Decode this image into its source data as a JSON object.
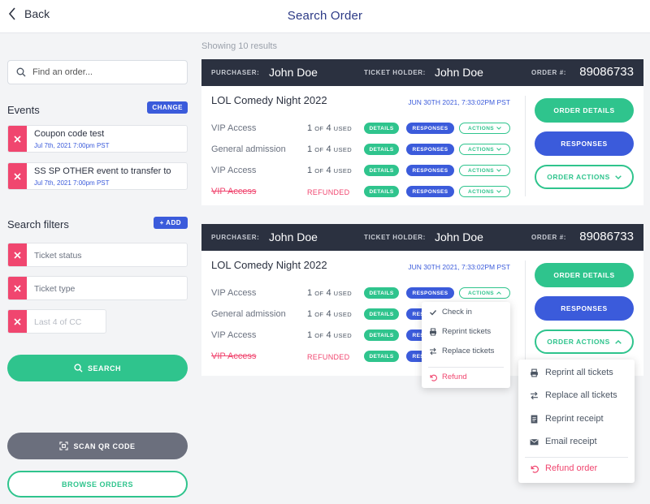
{
  "header": {
    "back_label": "Back",
    "title": "Search Order"
  },
  "sidebar": {
    "search_placeholder": "Find an order...",
    "events_title": "Events",
    "change_label": "CHANGE",
    "events": [
      {
        "name": "Coupon code test",
        "date": "Jul 7th, 2021 7:00pm PST"
      },
      {
        "name": "SS SP OTHER event to transfer to",
        "date": "Jul 7th, 2021 7:00pm PST"
      }
    ],
    "filters_title": "Search filters",
    "add_label": "+ ADD",
    "filters": [
      "Ticket status",
      "Ticket type",
      "Last 4 of CC"
    ],
    "search_button": "SEARCH",
    "scan_button": "SCAN QR CODE",
    "browse_button": "BROWSE ORDERS"
  },
  "main": {
    "results_text": "Showing 10 results",
    "labels": {
      "purchaser": "PURCHASER:",
      "ticket_holder": "TICKET HOLDER:",
      "order_number": "ORDER #:",
      "details": "DETAILS",
      "responses": "RESPONSES",
      "actions": "ACTIONS",
      "order_details": "ORDER DETAILS",
      "responses_btn": "RESPONSES",
      "order_actions": "ORDER ACTIONS"
    },
    "orders": [
      {
        "purchaser": "John Doe",
        "ticket_holder": "John Doe",
        "order_number": "89086733",
        "event_title": "LOL Comedy Night 2022",
        "event_when": "JUN 30TH 2021, 7:33:02PM PST",
        "tickets": [
          {
            "name": "VIP Access",
            "count": "1",
            "of": "OF",
            "total": "4",
            "used": "USED"
          },
          {
            "name": "General admission",
            "count": "1",
            "of": "OF",
            "total": "4",
            "used": "USED"
          },
          {
            "name": "VIP Access",
            "count": "1",
            "of": "OF",
            "total": "4",
            "used": "USED"
          },
          {
            "name": "VIP Access",
            "refunded": "REFUNDED"
          }
        ]
      },
      {
        "purchaser": "John Doe",
        "ticket_holder": "John Doe",
        "order_number": "89086733",
        "event_title": "LOL Comedy Night 2022",
        "event_when": "JUN 30TH 2021, 7:33:02PM PST",
        "tickets": [
          {
            "name": "VIP Access",
            "count": "1",
            "of": "OF",
            "total": "4",
            "used": "USED"
          },
          {
            "name": "General admission",
            "count": "1",
            "of": "OF",
            "total": "4",
            "used": "USED"
          },
          {
            "name": "VIP Access",
            "count": "1",
            "of": "OF",
            "total": "4",
            "used": "USED"
          },
          {
            "name": "VIP Access",
            "refunded": "REFUNDED"
          }
        ]
      }
    ],
    "ticket_actions_menu": [
      "Check in",
      "Reprint tickets",
      "Replace tickets",
      "Refund"
    ],
    "order_actions_menu": [
      "Reprint all tickets",
      "Replace all tickets",
      "Reprint receipt",
      "Email receipt",
      "Refund order"
    ]
  },
  "colors": {
    "green": "#2fc48d",
    "blue": "#3b5bdb",
    "pink": "#f0466f",
    "dark": "#2b3140"
  }
}
